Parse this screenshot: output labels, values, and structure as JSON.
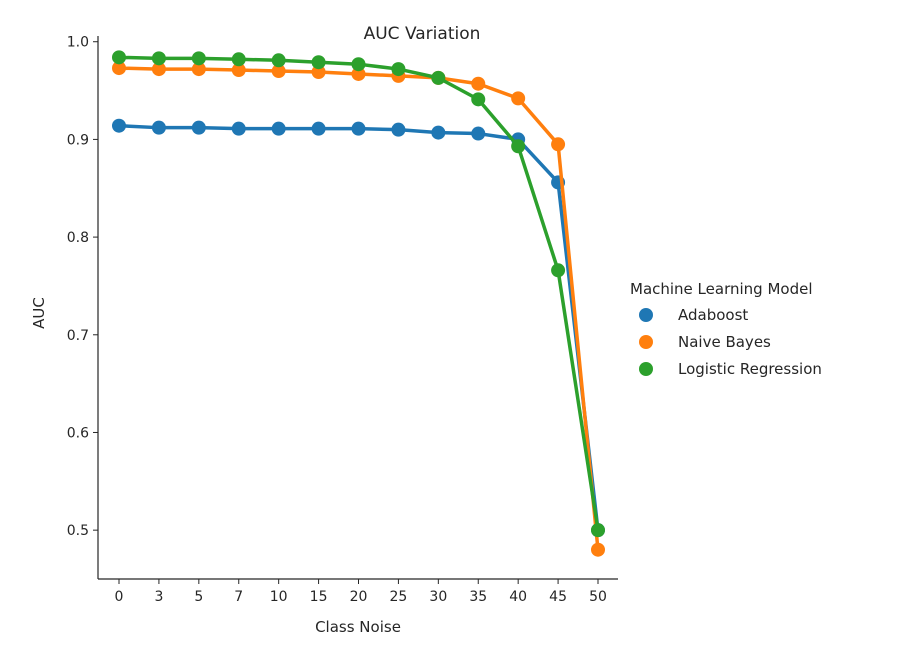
{
  "chart_data": {
    "type": "line",
    "title": "AUC Variation",
    "xlabel": "Class Noise",
    "ylabel": "AUC",
    "categories": [
      "0",
      "3",
      "5",
      "7",
      "10",
      "15",
      "20",
      "25",
      "30",
      "35",
      "40",
      "45",
      "50"
    ],
    "yticks": [
      "0.5",
      "0.6",
      "0.7",
      "0.8",
      "0.9",
      "1.0"
    ],
    "ylim": [
      0.45,
      1.012
    ],
    "grid": false,
    "legend": {
      "title": "Machine Learning Model",
      "placement": "right"
    },
    "series": [
      {
        "name": "Adaboost",
        "color": "#1f77b4",
        "values": [
          0.914,
          0.912,
          0.912,
          0.911,
          0.911,
          0.911,
          0.911,
          0.91,
          0.907,
          0.906,
          0.9,
          0.856,
          0.5
        ]
      },
      {
        "name": "Naive Bayes",
        "color": "#ff7f0e",
        "values": [
          0.973,
          0.972,
          0.972,
          0.971,
          0.97,
          0.969,
          0.967,
          0.965,
          0.963,
          0.957,
          0.942,
          0.895,
          0.48
        ]
      },
      {
        "name": "Logistic Regression",
        "color": "#2ca02c",
        "values": [
          0.984,
          0.983,
          0.983,
          0.982,
          0.981,
          0.979,
          0.977,
          0.972,
          0.963,
          0.941,
          0.893,
          0.766,
          0.5
        ]
      }
    ]
  }
}
